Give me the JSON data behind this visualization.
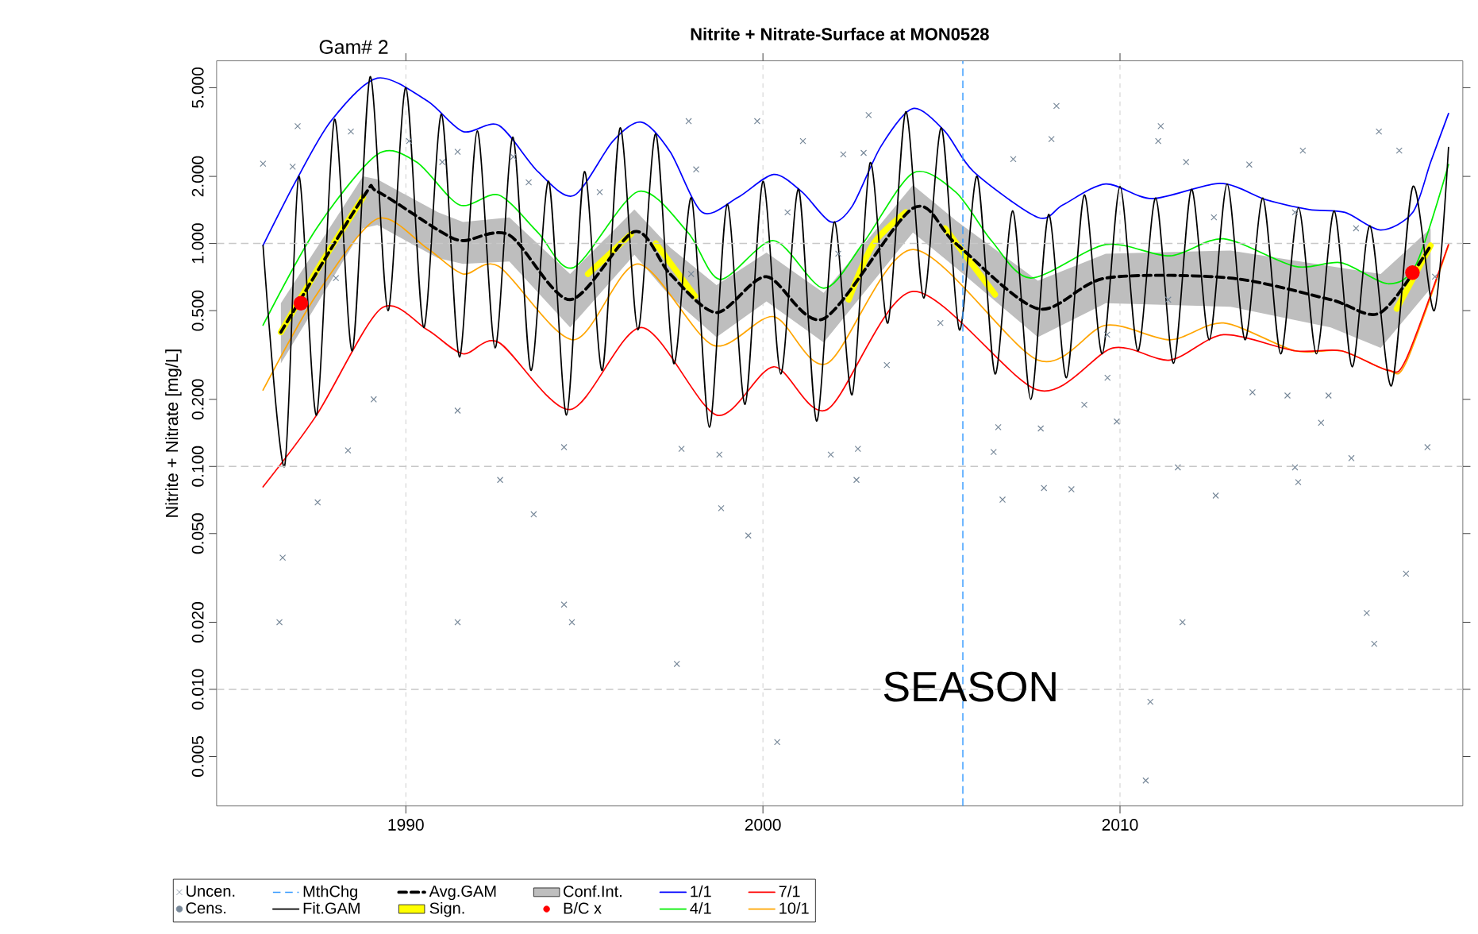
{
  "chart_data": {
    "type": "line",
    "title": "Nitrite + Nitrate-Surface at MON0528",
    "ylabel": "Nitrite + Nitrate [mg/L]",
    "annotations": [
      "Gam# 2",
      "SEASON"
    ],
    "xlim": [
      1984.7,
      2019.6
    ],
    "xticks": [
      1990,
      2000,
      2010
    ],
    "ylim": [
      0.003,
      6.6
    ],
    "yticks": [
      {
        "value": 0.005,
        "label": "0.005"
      },
      {
        "value": 0.01,
        "label": "0.010"
      },
      {
        "value": 0.02,
        "label": "0.020"
      },
      {
        "value": 0.05,
        "label": "0.050"
      },
      {
        "value": 0.1,
        "label": "0.100"
      },
      {
        "value": 0.2,
        "label": "0.200"
      },
      {
        "value": 0.5,
        "label": "0.500"
      },
      {
        "value": 1,
        "label": "1.000"
      },
      {
        "value": 2,
        "label": "2.000"
      },
      {
        "value": 5,
        "label": "5.000"
      }
    ],
    "log": true,
    "grid": "x",
    "legend": "bottom",
    "ref_lines": [
      {
        "axis": "x",
        "value": 2005.6,
        "label": "MthChg",
        "color": "#3399ff",
        "line_style": "dashed"
      },
      {
        "axis": "y",
        "value": 1,
        "color": "#c8c8c8",
        "line_style": "dashed"
      },
      {
        "axis": "y",
        "value": 0.1,
        "color": "#c8c8c8",
        "line_style": "dashed"
      },
      {
        "axis": "y",
        "value": 0.01,
        "color": "#c8c8c8",
        "line_style": "dashed"
      }
    ],
    "series": [
      {
        "name": "Uncen.",
        "type": "scatter",
        "marker": "cross",
        "color": "#778899",
        "x": [
          1986.0,
          1986.55,
          1986.46,
          1987.53,
          1988.38,
          1989.1,
          1991.45,
          1991.45,
          1992.64,
          1993.58,
          1994.43,
          1994.43,
          1994.65,
          1997.59,
          1997.72,
          1998.78,
          1998.83,
          1999.59,
          2000.4,
          2001.9,
          2002.62,
          2002.66,
          2003.47,
          2004.97,
          2006.46,
          2006.59,
          2006.71,
          2007.78,
          2007.87,
          2008.64,
          2009.0,
          2009.65,
          2009.91,
          2010.85,
          2010.72,
          2011.62,
          2011.75,
          2012.68,
          2013.71,
          2014.69,
          2014.9,
          2014.99,
          2015.63,
          2015.84,
          2016.48,
          2016.91,
          2017.12,
          2018.01,
          2018.61,
          1986.97,
          1986.83,
          1988.46,
          1990.09,
          1991.45,
          1993.01,
          1997.92,
          1999.84,
          1998.13,
          2001.12,
          2002.25,
          2002.96,
          2008.22,
          2008.08,
          2011.14,
          2011.07,
          2011.85,
          2015.12,
          2017.25,
          2017.82,
          2013.62,
          2002.82,
          2007.01,
          1988.04,
          1991.02,
          1993.44,
          1995.43,
          1997.99,
          2000.69,
          2002.11,
          2009.64,
          2011.35,
          2012.63,
          2014.9,
          2016.61,
          2018.82
        ],
        "values": [
          2.28,
          0.039,
          0.02,
          0.069,
          0.118,
          0.2,
          0.178,
          0.02,
          0.087,
          0.061,
          0.122,
          0.024,
          0.02,
          0.013,
          0.12,
          0.113,
          0.065,
          0.049,
          0.0058,
          0.113,
          0.087,
          0.12,
          0.285,
          0.44,
          0.116,
          0.15,
          0.071,
          0.148,
          0.08,
          0.079,
          0.189,
          0.25,
          0.159,
          0.0088,
          0.0039,
          0.099,
          0.02,
          0.074,
          0.215,
          0.208,
          0.099,
          0.085,
          0.157,
          0.208,
          0.109,
          0.022,
          0.016,
          0.033,
          0.122,
          3.36,
          2.21,
          3.18,
          2.88,
          2.58,
          2.45,
          3.54,
          3.54,
          2.15,
          2.88,
          2.51,
          3.77,
          4.14,
          2.94,
          3.36,
          2.88,
          2.32,
          2.61,
          3.18,
          2.61,
          2.26,
          2.55,
          2.39,
          0.7,
          2.32,
          1.88,
          1.7,
          0.73,
          1.38,
          0.9,
          0.39,
          0.56,
          1.31,
          1.38,
          1.17,
          0.71
        ]
      },
      {
        "name": "Cens.",
        "type": "scatter",
        "marker": "circle",
        "color": "#778899"
      },
      {
        "name": "Fit.GAM",
        "type": "line",
        "color": "#000000",
        "line_style": "solid",
        "x": [
          1986.0,
          1986.6,
          1987.0,
          1987.5,
          1988.0,
          1988.5,
          1989.0,
          1989.5,
          1990.0,
          1990.5,
          1991.0,
          1991.5,
          1992.0,
          1992.5,
          1993.0,
          1993.5,
          1994.0,
          1994.5,
          1995.0,
          1995.5,
          1996.0,
          1996.5,
          1997.0,
          1997.5,
          1998.0,
          1998.5,
          1999.0,
          1999.5,
          2000.0,
          2000.5,
          2001.0,
          2001.5,
          2002.0,
          2002.5,
          2003.0,
          2003.5,
          2004.0,
          2004.5,
          2005.0,
          2005.5,
          2006.0,
          2006.5,
          2007.0,
          2007.5,
          2008.0,
          2008.5,
          2009.0,
          2009.5,
          2010.0,
          2010.5,
          2011.0,
          2011.5,
          2012.0,
          2012.5,
          2013.0,
          2013.5,
          2014.0,
          2014.5,
          2015.0,
          2015.5,
          2016.0,
          2016.5,
          2017.0,
          2017.6,
          2018.2,
          2018.8,
          2019.2
        ],
        "values": [
          0.98,
          0.1,
          2.0,
          0.17,
          3.6,
          0.33,
          5.6,
          0.5,
          5.0,
          0.42,
          3.8,
          0.31,
          3.2,
          0.34,
          3.0,
          0.27,
          1.9,
          0.17,
          2.1,
          0.27,
          3.3,
          0.41,
          3.1,
          0.29,
          1.6,
          0.15,
          1.5,
          0.19,
          1.9,
          0.26,
          1.75,
          0.16,
          1.25,
          0.21,
          2.3,
          0.44,
          3.9,
          0.57,
          3.3,
          0.41,
          2.0,
          0.26,
          1.4,
          0.2,
          1.35,
          0.25,
          1.65,
          0.32,
          1.8,
          0.33,
          1.6,
          0.29,
          1.75,
          0.37,
          1.85,
          0.37,
          1.6,
          0.32,
          1.45,
          0.32,
          1.4,
          0.28,
          1.2,
          0.23,
          1.8,
          0.5,
          2.7
        ]
      },
      {
        "name": "Avg.GAM",
        "type": "line",
        "color": "#000000",
        "line_style": "dashed",
        "x": [
          1986.5,
          1988.8,
          1989.2,
          1990.9,
          1991.6,
          1992.9,
          1994.6,
          1996.4,
          1997.4,
          1998.7,
          2000.1,
          2001.7,
          2004.2,
          2005.4,
          2007.7,
          2009.6,
          2013.1,
          2015.9,
          2017.3,
          2018.7
        ],
        "values": [
          0.4,
          1.61,
          1.71,
          1.15,
          1.03,
          1.09,
          0.56,
          1.13,
          0.73,
          0.49,
          0.71,
          0.46,
          1.44,
          1.0,
          0.51,
          0.7,
          0.7,
          0.56,
          0.49,
          0.98
        ]
      },
      {
        "name": "Sign.",
        "type": "line",
        "color": "#ffff00",
        "x": [
          1986.5,
          1987.6,
          1988.8,
          1990.0,
          1995.1,
          1996.3,
          1996.7,
          1997.0,
          1998.1,
          1999.0,
          2002.4,
          2003.1,
          2004.0,
          2004.6,
          2005.1,
          2006.5,
          2010.0,
          2017.75,
          2018.7
        ],
        "values": [
          0.4,
          0.8,
          1.61,
          null,
          0.73,
          1.1,
          null,
          1.0,
          0.58,
          null,
          0.56,
          1.0,
          1.38,
          null,
          1.17,
          0.59,
          null,
          0.51,
          0.98
        ]
      },
      {
        "name": "Conf.Int.",
        "type": "area",
        "color": "#bebebe",
        "x": [
          1986.5,
          1988.8,
          1989.2,
          1990.9,
          1991.6,
          1992.9,
          1994.6,
          1996.4,
          1997.4,
          1998.7,
          2000.1,
          2001.7,
          2004.2,
          2005.4,
          2007.7,
          2009.6,
          2013.1,
          2015.9,
          2017.3,
          2018.7
        ],
        "values": [
          null,
          null,
          null,
          null,
          null,
          null,
          null,
          null,
          null,
          null,
          null,
          null,
          null,
          null,
          null,
          null,
          null,
          null,
          null,
          null
        ],
        "lower": [
          0.29,
          1.17,
          1.21,
          0.86,
          0.81,
          0.83,
          0.42,
          0.89,
          0.58,
          0.38,
          0.55,
          0.36,
          1.12,
          0.78,
          0.38,
          0.54,
          0.52,
          0.42,
          0.34,
          0.63
        ],
        "upper": [
          0.54,
          2.0,
          1.94,
          1.38,
          1.25,
          1.31,
          0.73,
          1.42,
          0.96,
          0.65,
          0.91,
          0.6,
          1.83,
          1.27,
          0.68,
          0.9,
          0.93,
          0.79,
          0.73,
          1.17
        ]
      },
      {
        "name": "B/C x",
        "type": "scatter",
        "marker": "circle",
        "color": "#ff0000",
        "x": [
          1987.06,
          2018.19
        ],
        "values": [
          0.54,
          0.74
        ]
      },
      {
        "name": "1/1",
        "type": "line",
        "color": "#0000ff",
        "x": [
          1986.0,
          1986.9,
          1987.9,
          1989.2,
          1990.6,
          1991.6,
          1992.6,
          1993.7,
          1994.7,
          1995.8,
          1996.6,
          1997.4,
          1998.3,
          1999.3,
          2000.3,
          2001.1,
          2001.9,
          2002.5,
          2003.3,
          2004.2,
          2005.1,
          2005.9,
          2007.7,
          2008.4,
          2009.6,
          2010.9,
          2012.8,
          2014.1,
          2015.3,
          2016.3,
          2017.3,
          2018.2,
          2018.7,
          2019.2
        ],
        "values": [
          0.98,
          1.88,
          3.54,
          5.52,
          4.36,
          3.18,
          3.39,
          2.1,
          1.64,
          2.88,
          3.5,
          2.58,
          1.38,
          1.61,
          2.04,
          1.7,
          1.25,
          1.47,
          2.72,
          4.03,
          3.18,
          2.1,
          1.31,
          1.49,
          1.85,
          1.59,
          1.86,
          1.57,
          1.42,
          1.38,
          1.15,
          1.38,
          2.32,
          3.83
        ]
      },
      {
        "name": "4/1",
        "type": "line",
        "color": "#00ee00",
        "x": [
          1986.0,
          1987.5,
          1989.2,
          1990.3,
          1991.5,
          1992.6,
          1993.7,
          1994.7,
          1996.5,
          1997.9,
          1998.8,
          2000.3,
          2001.7,
          2002.8,
          2004.2,
          2005.4,
          2006.4,
          2007.5,
          2009.6,
          2011.4,
          2012.9,
          2014.9,
          2016.2,
          2017.5,
          2018.3,
          2019.2
        ],
        "values": [
          0.43,
          1.17,
          2.51,
          2.32,
          1.49,
          1.65,
          1.12,
          0.78,
          1.71,
          1.12,
          0.69,
          1.03,
          0.63,
          1.0,
          2.07,
          1.7,
          1.03,
          0.7,
          0.99,
          0.88,
          1.05,
          0.79,
          0.82,
          0.66,
          0.81,
          2.26
        ]
      },
      {
        "name": "7/1",
        "type": "line",
        "color": "#ff0000",
        "x": [
          1986.0,
          1987.5,
          1989.3,
          1990.6,
          1991.6,
          1992.6,
          1994.6,
          1996.6,
          1998.7,
          2000.3,
          2001.8,
          2004.2,
          2007.7,
          2009.8,
          2011.4,
          2012.9,
          2014.9,
          2016.2,
          2017.5,
          2018.0,
          2019.2
        ],
        "values": [
          0.081,
          0.17,
          0.51,
          0.41,
          0.32,
          0.36,
          0.18,
          0.42,
          0.17,
          0.28,
          0.18,
          0.61,
          0.22,
          0.34,
          0.3,
          0.39,
          0.33,
          0.33,
          0.27,
          0.3,
          0.99
        ]
      },
      {
        "name": "10/1",
        "type": "line",
        "color": "#ffa500",
        "x": [
          1986.0,
          1987.5,
          1989.2,
          1990.6,
          1991.6,
          1992.6,
          1994.7,
          1996.5,
          1998.6,
          2000.3,
          2001.8,
          2004.2,
          2007.7,
          2009.6,
          2011.4,
          2012.9,
          2014.9,
          2016.2,
          2017.5,
          2018.0,
          2019.2
        ],
        "values": [
          0.22,
          0.59,
          1.29,
          0.95,
          0.73,
          0.79,
          0.37,
          0.81,
          0.35,
          0.47,
          0.29,
          0.94,
          0.3,
          0.43,
          0.37,
          0.44,
          0.33,
          0.33,
          0.27,
          0.29,
          0.98
        ]
      }
    ]
  }
}
